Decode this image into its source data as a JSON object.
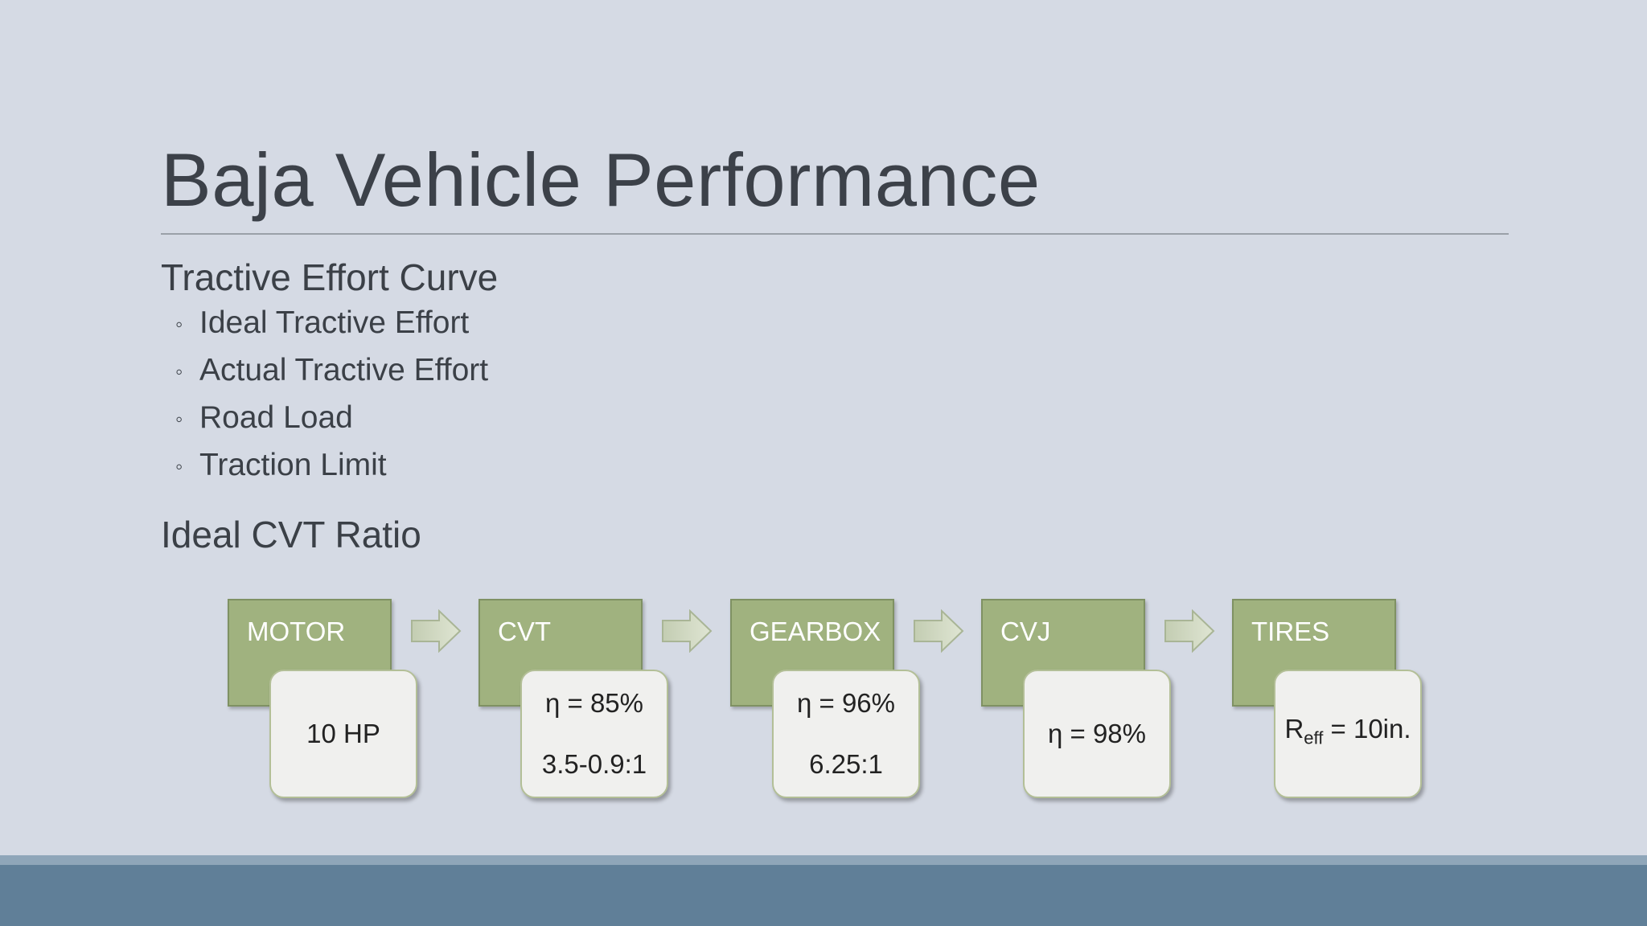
{
  "slide": {
    "title": "Baja Vehicle Performance",
    "section1": "Tractive Effort Curve",
    "bullets": [
      "Ideal Tractive Effort",
      "Actual Tractive Effort",
      "Road Load",
      "Traction Limit"
    ],
    "bullet_glyph": "◦",
    "section2": "Ideal CVT Ratio"
  },
  "flow": [
    {
      "label": "MOTOR",
      "lines": [
        "10 HP"
      ]
    },
    {
      "label": "CVT",
      "lines": [
        "η = 85%",
        "3.5-0.9:1"
      ]
    },
    {
      "label": "GEARBOX",
      "lines": [
        "η = 96%",
        "6.25:1"
      ]
    },
    {
      "label": "CVJ",
      "lines": [
        "η = 98%"
      ]
    },
    {
      "label": "TIRES",
      "reff_main": "R",
      "reff_sub": "eff",
      "reff_rest": " = 10in."
    }
  ],
  "colors": {
    "background": "#d5dae4",
    "green_box": "#a0b27f",
    "footer": "#607f98"
  }
}
